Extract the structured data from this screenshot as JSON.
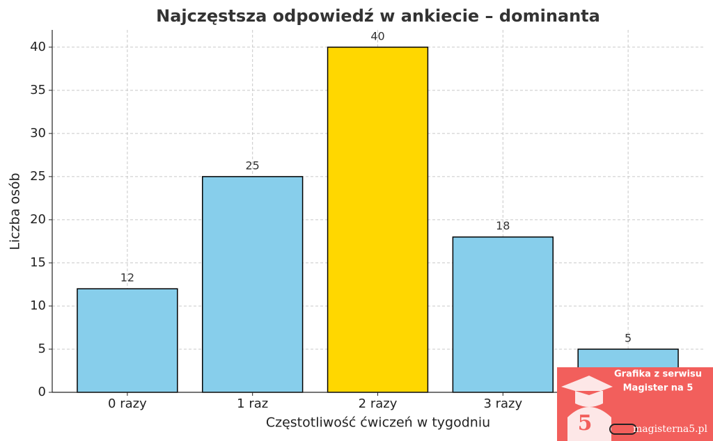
{
  "chart_data": {
    "type": "bar",
    "title": "Najczęstsza odpowiedź w ankiecie – dominanta",
    "x_label": "Częstotliwość ćwiczeń w tygodniu",
    "y_label": "Liczba osób",
    "categories": [
      "0 razy",
      "1 raz",
      "2 razy",
      "3 razy",
      null
    ],
    "values": [
      12,
      25,
      40,
      18,
      5
    ],
    "colors": [
      "#87ceeb",
      "#87ceeb",
      "#ffd700",
      "#87ceeb",
      "#87ceeb"
    ],
    "ylim": [
      0,
      42
    ],
    "yticks": [
      0,
      5,
      10,
      15,
      20,
      25,
      30,
      35,
      40
    ],
    "grid": true
  },
  "watermark": {
    "line1": "Grafika z serwisu",
    "line2": "Magister na 5",
    "logo": "5",
    "url": "magisterna5.pl"
  }
}
